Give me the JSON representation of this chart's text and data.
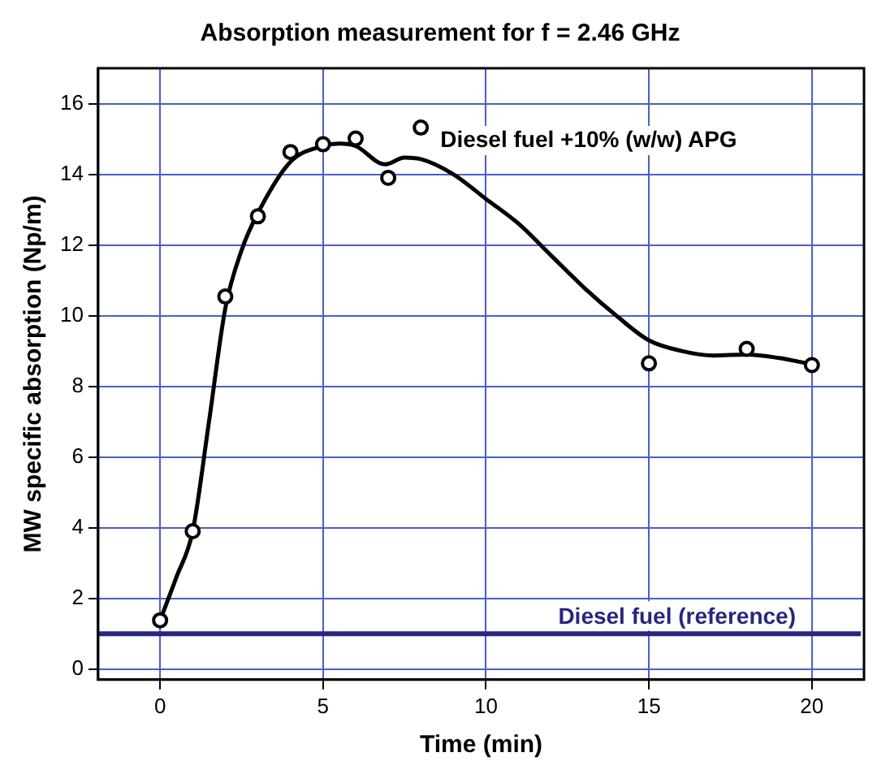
{
  "chart_data": {
    "type": "scatter",
    "title": "Absorption measurement for f = 2.46 GHz",
    "xlabel": "Time (min)",
    "ylabel": "MW specific absorption (Np/m)",
    "xlim": [
      -1.9,
      21.6
    ],
    "xticks": [
      0,
      5,
      10,
      15,
      20
    ],
    "ylim": [
      -0.3,
      17
    ],
    "yticks": [
      0,
      2,
      4,
      6,
      8,
      10,
      12,
      14,
      16
    ],
    "grid": true,
    "legend": false,
    "marker": "circle",
    "series": [
      {
        "name": "Diesel fuel +10% (w/w) APG",
        "color": "#000000",
        "x": [
          0,
          1,
          2,
          3,
          4,
          5,
          6,
          7,
          8,
          15,
          18,
          20
        ],
        "values": [
          1.38,
          3.9,
          10.54,
          12.81,
          14.63,
          14.85,
          15.01,
          13.9,
          15.32,
          8.65,
          9.06,
          8.6
        ]
      },
      {
        "type": "line",
        "marker": "none",
        "color": "#000000",
        "x": [
          0,
          0.5,
          1,
          1.5,
          2,
          2.5,
          3,
          4,
          5,
          5.5,
          6,
          6.9,
          7.5,
          8,
          9,
          10,
          11,
          12,
          13,
          14,
          15,
          16,
          17,
          18,
          19,
          20
        ],
        "values": [
          1.38,
          2.6,
          3.9,
          7.0,
          10.2,
          11.85,
          12.9,
          14.35,
          14.8,
          14.87,
          14.8,
          14.28,
          14.47,
          14.43,
          14.0,
          13.3,
          12.6,
          11.7,
          10.8,
          10.0,
          9.3,
          9.0,
          8.87,
          8.9,
          8.8,
          8.62
        ]
      },
      {
        "name": "Diesel fuel (reference)",
        "type": "line",
        "marker": "none",
        "color": "#27277f",
        "x": [
          -1.9,
          21.5
        ],
        "values": [
          1,
          1
        ]
      }
    ]
  }
}
